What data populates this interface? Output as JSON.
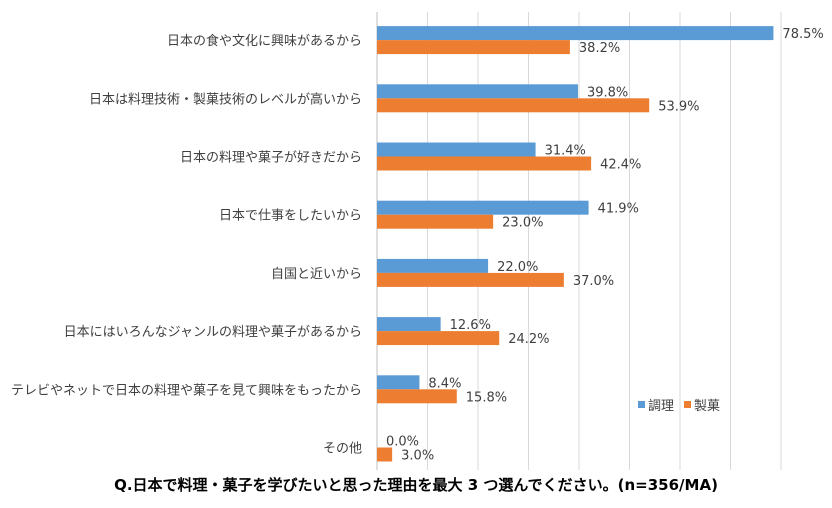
{
  "chart_data": {
    "type": "bar",
    "orientation": "horizontal",
    "categories": [
      "日本の食や文化に興味があるから",
      "日本は料理技術・製菓技術のレベルが高いから",
      "日本の料理や菓子が好きだから",
      "日本で仕事をしたいから",
      "自国と近いから",
      "日本にはいろんなジャンルの料理や菓子があるから",
      "テレビやネットで日本の料理や菓子を見て興味をもったから",
      "その他"
    ],
    "series": [
      {
        "name": "調理",
        "color": "#5B9BD5",
        "values": [
          78.5,
          39.8,
          31.4,
          41.9,
          22.0,
          12.6,
          8.4,
          0.0
        ],
        "labels": [
          "78.5%",
          "39.8%",
          "31.4%",
          "41.9%",
          "22.0%",
          "12.6%",
          "8.4%",
          "0.0%"
        ]
      },
      {
        "name": "製菓",
        "color": "#ED7D31",
        "values": [
          38.2,
          53.9,
          42.4,
          23.0,
          37.0,
          24.2,
          15.8,
          3.0
        ],
        "labels": [
          "38.2%",
          "53.9%",
          "42.4%",
          "23.0%",
          "37.0%",
          "24.2%",
          "15.8%",
          "3.0%"
        ]
      }
    ],
    "xlim": [
      0,
      80
    ],
    "grid": true,
    "legend_position": "bottom-right",
    "title": "Q.日本で料理・菓子を学びたいと思った理由を最大 3 つ選んでください。(n=356/MA)"
  }
}
